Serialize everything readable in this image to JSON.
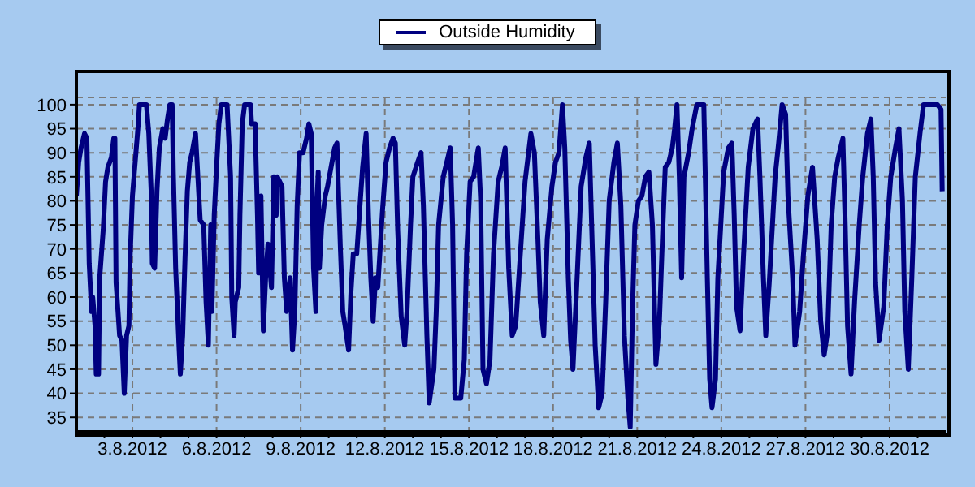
{
  "chart_data": {
    "type": "line",
    "legend": "top",
    "grid": true,
    "xlim": [
      "2012-08-01T00:00",
      "2012-09-01T00:00"
    ],
    "xticks": [
      {
        "value": "2012-08-02",
        "label": null
      },
      {
        "value": "2012-08-03",
        "label": "3.8.2012"
      },
      {
        "value": "2012-08-04",
        "label": null
      },
      {
        "value": "2012-08-05",
        "label": null
      },
      {
        "value": "2012-08-06",
        "label": "6.8.2012"
      },
      {
        "value": "2012-08-07",
        "label": null
      },
      {
        "value": "2012-08-08",
        "label": null
      },
      {
        "value": "2012-08-09",
        "label": "9.8.2012"
      },
      {
        "value": "2012-08-10",
        "label": null
      },
      {
        "value": "2012-08-11",
        "label": null
      },
      {
        "value": "2012-08-12",
        "label": "12.8.2012"
      },
      {
        "value": "2012-08-13",
        "label": null
      },
      {
        "value": "2012-08-14",
        "label": null
      },
      {
        "value": "2012-08-15",
        "label": "15.8.2012"
      },
      {
        "value": "2012-08-16",
        "label": null
      },
      {
        "value": "2012-08-17",
        "label": null
      },
      {
        "value": "2012-08-18",
        "label": "18.8.2012"
      },
      {
        "value": "2012-08-19",
        "label": null
      },
      {
        "value": "2012-08-20",
        "label": null
      },
      {
        "value": "2012-08-21",
        "label": "21.8.2012"
      },
      {
        "value": "2012-08-22",
        "label": null
      },
      {
        "value": "2012-08-23",
        "label": null
      },
      {
        "value": "2012-08-24",
        "label": "24.8.2012"
      },
      {
        "value": "2012-08-25",
        "label": null
      },
      {
        "value": "2012-08-26",
        "label": null
      },
      {
        "value": "2012-08-27",
        "label": "27.8.2012"
      },
      {
        "value": "2012-08-28",
        "label": null
      },
      {
        "value": "2012-08-29",
        "label": null
      },
      {
        "value": "2012-08-30",
        "label": "30.8.2012"
      },
      {
        "value": "2012-08-31",
        "label": null
      }
    ],
    "ylim": [
      32,
      101.5
    ],
    "yticks": [
      35,
      40,
      45,
      50,
      55,
      60,
      65,
      70,
      75,
      80,
      85,
      90,
      95,
      100
    ],
    "series": [
      {
        "name": "Outside Humidity",
        "color": "#000080",
        "x": [
          "2012-08-01T00:00",
          "2012-08-01T02:00",
          "2012-08-01T04:00",
          "2012-08-01T07:00",
          "2012-08-01T09:00",
          "2012-08-01T11:00",
          "2012-08-01T13:00",
          "2012-08-01T14:00",
          "2012-08-01T16:00",
          "2012-08-01T17:00",
          "2012-08-01T19:00",
          "2012-08-01T20:00",
          "2012-08-01T23:00",
          "2012-08-02T01:00",
          "2012-08-02T03:00",
          "2012-08-02T06:00",
          "2012-08-02T08:00",
          "2012-08-02T09:00",
          "2012-08-02T10:00",
          "2012-08-02T13:00",
          "2012-08-02T15:00",
          "2012-08-02T17:00",
          "2012-08-02T19:00",
          "2012-08-02T21:00",
          "2012-08-02T22:00",
          "2012-08-03T00:00",
          "2012-08-03T03:00",
          "2012-08-03T05:00",
          "2012-08-03T06:00",
          "2012-08-03T12:00",
          "2012-08-03T14:00",
          "2012-08-03T16:00",
          "2012-08-03T17:00",
          "2012-08-03T19:00",
          "2012-08-03T21:00",
          "2012-08-03T23:00",
          "2012-08-04T02:00",
          "2012-08-04T04:00",
          "2012-08-04T06:00",
          "2012-08-04T08:00",
          "2012-08-04T10:00",
          "2012-08-04T11:00",
          "2012-08-04T13:00",
          "2012-08-04T16:00",
          "2012-08-04T17:00",
          "2012-08-04T19:00",
          "2012-08-04T21:00",
          "2012-08-04T23:00",
          "2012-08-05T01:00",
          "2012-08-05T03:00",
          "2012-08-05T06:00",
          "2012-08-05T08:00",
          "2012-08-05T10:00",
          "2012-08-05T13:00",
          "2012-08-05T15:00",
          "2012-08-05T17:00",
          "2012-08-05T19:00",
          "2012-08-05T20:00",
          "2012-08-05T22:00",
          "2012-08-06T00:00",
          "2012-08-06T02:00",
          "2012-08-06T04:00",
          "2012-08-06T09:00",
          "2012-08-06T12:00",
          "2012-08-06T13:00",
          "2012-08-06T15:00",
          "2012-08-06T16:00",
          "2012-08-06T19:00",
          "2012-08-06T20:00",
          "2012-08-06T22:00",
          "2012-08-07T00:00",
          "2012-08-07T05:00",
          "2012-08-07T06:00",
          "2012-08-07T09:00",
          "2012-08-07T11:00",
          "2012-08-07T12:00",
          "2012-08-07T14:00",
          "2012-08-07T16:00",
          "2012-08-07T18:00",
          "2012-08-07T20:00",
          "2012-08-07T23:00",
          "2012-08-08T01:00",
          "2012-08-08T03:00",
          "2012-08-08T04:00",
          "2012-08-08T08:00",
          "2012-08-08T10:00",
          "2012-08-08T12:00",
          "2012-08-08T15:00",
          "2012-08-08T17:00",
          "2012-08-08T19:00",
          "2012-08-08T21:00",
          "2012-08-08T23:00",
          "2012-08-09T02:00",
          "2012-08-09T05:00",
          "2012-08-09T07:00",
          "2012-08-09T09:00",
          "2012-08-09T11:00",
          "2012-08-09T13:00",
          "2012-08-09T14:00",
          "2012-08-09T15:00",
          "2012-08-09T16:00",
          "2012-08-09T18:00",
          "2012-08-09T21:00",
          "2012-08-09T23:00",
          "2012-08-10T02:00",
          "2012-08-10T05:00",
          "2012-08-10T07:00",
          "2012-08-10T10:00",
          "2012-08-10T12:00",
          "2012-08-10T14:00",
          "2012-08-10T17:00",
          "2012-08-10T19:00",
          "2012-08-10T21:00",
          "2012-08-11T00:00",
          "2012-08-11T03:00",
          "2012-08-11T05:00",
          "2012-08-11T08:00",
          "2012-08-11T10:00",
          "2012-08-11T12:00",
          "2012-08-11T14:00",
          "2012-08-11T16:00",
          "2012-08-11T18:00",
          "2012-08-11T22:00",
          "2012-08-12T01:00",
          "2012-08-12T04:00",
          "2012-08-12T07:00",
          "2012-08-12T09:00",
          "2012-08-12T11:00",
          "2012-08-12T14:00",
          "2012-08-12T17:00",
          "2012-08-12T19:00",
          "2012-08-12T22:00",
          "2012-08-13T00:00",
          "2012-08-13T04:00",
          "2012-08-13T07:00",
          "2012-08-13T09:00",
          "2012-08-13T12:00",
          "2012-08-13T14:00",
          "2012-08-13T18:00",
          "2012-08-13T20:00",
          "2012-08-13T22:00",
          "2012-08-14T02:00",
          "2012-08-14T05:00",
          "2012-08-14T08:00",
          "2012-08-14T10:00",
          "2012-08-14T12:00",
          "2012-08-14T17:00",
          "2012-08-14T20:00",
          "2012-08-14T22:00",
          "2012-08-15T01:00",
          "2012-08-15T04:00",
          "2012-08-15T08:00",
          "2012-08-15T10:00",
          "2012-08-15T12:00",
          "2012-08-15T15:00",
          "2012-08-15T18:00",
          "2012-08-15T21:00",
          "2012-08-16T01:00",
          "2012-08-16T04:00",
          "2012-08-16T07:00",
          "2012-08-16T10:00",
          "2012-08-16T13:00",
          "2012-08-16T16:00",
          "2012-08-16T20:00",
          "2012-08-17T00:00",
          "2012-08-17T05:00",
          "2012-08-17T08:00",
          "2012-08-17T11:00",
          "2012-08-17T13:00",
          "2012-08-17T16:00",
          "2012-08-17T19:00",
          "2012-08-17T23:00",
          "2012-08-18T02:00",
          "2012-08-18T05:00",
          "2012-08-18T08:00",
          "2012-08-18T10:00",
          "2012-08-18T13:00",
          "2012-08-18T15:00",
          "2012-08-18T17:00",
          "2012-08-18T20:00",
          "2012-08-19T00:00",
          "2012-08-19T04:00",
          "2012-08-19T07:00",
          "2012-08-19T09:00",
          "2012-08-19T12:00",
          "2012-08-19T15:00",
          "2012-08-19T18:00",
          "2012-08-19T21:00",
          "2012-08-20T00:00",
          "2012-08-20T04:00",
          "2012-08-20T07:00",
          "2012-08-20T10:00",
          "2012-08-20T13:00",
          "2012-08-20T16:00",
          "2012-08-20T18:00",
          "2012-08-20T20:00",
          "2012-08-20T22:00",
          "2012-08-21T01:00",
          "2012-08-21T04:00",
          "2012-08-21T07:00",
          "2012-08-21T10:00",
          "2012-08-21T13:00",
          "2012-08-21T16:00",
          "2012-08-21T19:00",
          "2012-08-21T22:00",
          "2012-08-22T00:00",
          "2012-08-22T03:00",
          "2012-08-22T06:00",
          "2012-08-22T08:00",
          "2012-08-22T10:00",
          "2012-08-22T12:00",
          "2012-08-22T14:00",
          "2012-08-22T16:00",
          "2012-08-22T20:00",
          "2012-08-22T23:00",
          "2012-08-23T03:00",
          "2012-08-23T09:00",
          "2012-08-23T10:00",
          "2012-08-23T12:00",
          "2012-08-23T14:00",
          "2012-08-23T16:00",
          "2012-08-23T19:00",
          "2012-08-23T21:00",
          "2012-08-24T02:00",
          "2012-08-24T06:00",
          "2012-08-24T09:00",
          "2012-08-24T11:00",
          "2012-08-24T13:00",
          "2012-08-24T16:00",
          "2012-08-24T19:00",
          "2012-08-24T23:00",
          "2012-08-25T03:00",
          "2012-08-25T07:00",
          "2012-08-25T09:00",
          "2012-08-25T12:00",
          "2012-08-25T14:00",
          "2012-08-25T17:00",
          "2012-08-25T22:00",
          "2012-08-26T01:00",
          "2012-08-26T04:00",
          "2012-08-26T07:00",
          "2012-08-26T09:00",
          "2012-08-26T13:00",
          "2012-08-26T15:00",
          "2012-08-26T19:00",
          "2012-08-26T22:00",
          "2012-08-27T02:00",
          "2012-08-27T06:00",
          "2012-08-27T10:00",
          "2012-08-27T13:00",
          "2012-08-27T16:00",
          "2012-08-27T19:00",
          "2012-08-27T22:00",
          "2012-08-28T01:00",
          "2012-08-28T04:00",
          "2012-08-28T08:00",
          "2012-08-28T10:00",
          "2012-08-28T12:00",
          "2012-08-28T15:00",
          "2012-08-28T18:00",
          "2012-08-28T22:00",
          "2012-08-29T01:00",
          "2012-08-29T05:00",
          "2012-08-29T08:00",
          "2012-08-29T10:00",
          "2012-08-29T12:00",
          "2012-08-29T15:00",
          "2012-08-29T19:00",
          "2012-08-29T22:00",
          "2012-08-30T01:00",
          "2012-08-30T05:00",
          "2012-08-30T08:00",
          "2012-08-30T11:00",
          "2012-08-30T13:00",
          "2012-08-30T16:00",
          "2012-08-30T19:00",
          "2012-08-30T22:00",
          "2012-08-31T02:00",
          "2012-08-31T05:00",
          "2012-08-31T17:00",
          "2012-08-31T20:00",
          "2012-08-31T21:00"
        ],
        "values": [
          81,
          88,
          91,
          94,
          93,
          67,
          57,
          60,
          54,
          44,
          44,
          64,
          74,
          84,
          87,
          89,
          93,
          93,
          63,
          52,
          51,
          40,
          52,
          54,
          68,
          81,
          90,
          96,
          100,
          100,
          94,
          82,
          67,
          66,
          82,
          91,
          95,
          93,
          97,
          100,
          100,
          86,
          66,
          49,
          44,
          52,
          68,
          82,
          88,
          90,
          94,
          85,
          76,
          75,
          59,
          50,
          75,
          57,
          77,
          87,
          96,
          100,
          100,
          85,
          60,
          52,
          59,
          62,
          77,
          96,
          100,
          100,
          96,
          96,
          77,
          65,
          81,
          53,
          64,
          71,
          62,
          85,
          77,
          85,
          83,
          64,
          57,
          64,
          49,
          57,
          79,
          90,
          90,
          93,
          96,
          94,
          66,
          57,
          80,
          86,
          66,
          75,
          81,
          83,
          87,
          91,
          92,
          70,
          57,
          54,
          49,
          61,
          69,
          69,
          80,
          87,
          94,
          77,
          64,
          55,
          64,
          62,
          78,
          88,
          91,
          93,
          92,
          74,
          56,
          50,
          57,
          75,
          85,
          88,
          90,
          79,
          52,
          38,
          45,
          57,
          75,
          85,
          88,
          91,
          75,
          39,
          39,
          47,
          69,
          84,
          85,
          91,
          80,
          45,
          42,
          47,
          69,
          84,
          87,
          91,
          66,
          52,
          54,
          69,
          84,
          94,
          90,
          72,
          59,
          52,
          72,
          83,
          88,
          90,
          100,
          91,
          64,
          51,
          45,
          61,
          83,
          89,
          92,
          75,
          50,
          37,
          40,
          59,
          80,
          88,
          92,
          79,
          52,
          39,
          33,
          58,
          75,
          80,
          81,
          85,
          86,
          75,
          46,
          55,
          75,
          87,
          88,
          91,
          95,
          100,
          85,
          64,
          85,
          90,
          95,
          100,
          100,
          88,
          64,
          43,
          37,
          43,
          64,
          86,
          91,
          92,
          77,
          58,
          53,
          69,
          87,
          95,
          97,
          85,
          64,
          52,
          63,
          85,
          92,
          100,
          98,
          81,
          64,
          50,
          57,
          68,
          81,
          87,
          72,
          55,
          48,
          53,
          75,
          85,
          89,
          93,
          75,
          54,
          44,
          59,
          75,
          85,
          94,
          97,
          85,
          63,
          51,
          58,
          75,
          85,
          91,
          95,
          80,
          57,
          45,
          64,
          85,
          94,
          100,
          100,
          99,
          82
        ]
      }
    ]
  }
}
